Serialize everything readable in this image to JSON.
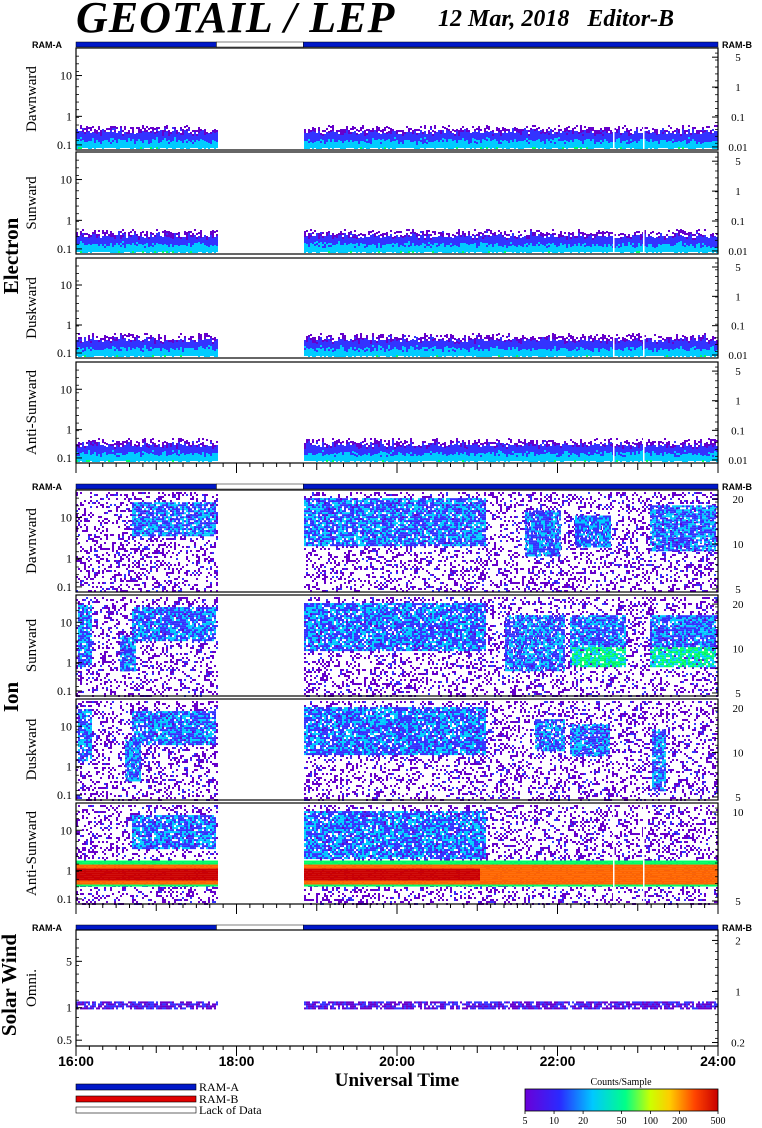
{
  "title": "GEOTAIL / LEP",
  "date": "12 Mar, 2018",
  "editor": "Editor-B",
  "ram_left_label": "RAM-A",
  "ram_right_label": "RAM-B",
  "xlabel": "Universal Time",
  "colors": {
    "ram_a": "#0018c8",
    "ram_b": "#e00000",
    "lack": "#ffffff",
    "background": "#ffffff"
  },
  "legend": {
    "ram_a": "RAM-A",
    "ram_b": "RAM-B",
    "lack": "Lack of Data"
  },
  "colorbar": {
    "title": "Counts/Sample",
    "ticks": [
      "5",
      "10",
      "20",
      "50",
      "100",
      "200",
      "500"
    ],
    "values": [
      5,
      10,
      20,
      50,
      100,
      200,
      500
    ],
    "colors": [
      "#6600cc",
      "#3333ff",
      "#00ccff",
      "#00ff66",
      "#ffff00",
      "#ff6600",
      "#cc0000"
    ]
  },
  "chart_data": {
    "type": "heatmap",
    "x_range": [
      "16:00",
      "24:00"
    ],
    "x_ticks": [
      "16:00",
      "18:00",
      "20:00",
      "22:00",
      "24:00"
    ],
    "data_gap": [
      "17:45",
      "18:50"
    ],
    "ram_segments": [
      {
        "start": "16:00",
        "end": "17:45",
        "state": "RAM-A"
      },
      {
        "start": "17:45",
        "end": "18:50",
        "state": "Lack of Data"
      },
      {
        "start": "18:50",
        "end": "24:00",
        "state": "RAM-A"
      }
    ],
    "groups": [
      {
        "label": "Electron",
        "panels": [
          {
            "label": "Dawnward",
            "left_ticks": [
              "10",
              "1",
              "0.1"
            ],
            "right_ticks": [
              "5",
              "1",
              "0.1",
              "0.01"
            ]
          },
          {
            "label": "Sunward",
            "left_ticks": [
              "10",
              "1",
              "0.1"
            ],
            "right_ticks": [
              "5",
              "1",
              "0.1",
              "0.01"
            ]
          },
          {
            "label": "Duskward",
            "left_ticks": [
              "10",
              "1",
              "0.1"
            ],
            "right_ticks": [
              "5",
              "1",
              "0.1",
              "0.01"
            ]
          },
          {
            "label": "Anti-Sunward",
            "left_ticks": [
              "10",
              "1",
              "0.1"
            ],
            "right_ticks": [
              "5",
              "1",
              "0.1",
              "0.01"
            ]
          }
        ]
      },
      {
        "label": "Ion",
        "panels": [
          {
            "label": "Dawnward",
            "left_ticks": [
              "10",
              "1",
              "0.1"
            ],
            "right_ticks": [
              "20",
              "10",
              "5"
            ]
          },
          {
            "label": "Sunward",
            "left_ticks": [
              "10",
              "1",
              "0.1"
            ],
            "right_ticks": [
              "20",
              "10",
              "5"
            ]
          },
          {
            "label": "Duskward",
            "left_ticks": [
              "10",
              "1",
              "0.1"
            ],
            "right_ticks": [
              "20",
              "10",
              "5"
            ]
          },
          {
            "label": "Anti-Sunward",
            "left_ticks": [
              "10",
              "1",
              "0.1"
            ],
            "right_ticks": [
              "10",
              "5"
            ]
          }
        ]
      },
      {
        "label": "Solar Wind",
        "panels": [
          {
            "label": "Omni.",
            "left_ticks": [
              "5",
              "1",
              "0.5"
            ],
            "right_ticks": [
              "2",
              "1",
              "0.2"
            ]
          }
        ]
      }
    ]
  }
}
